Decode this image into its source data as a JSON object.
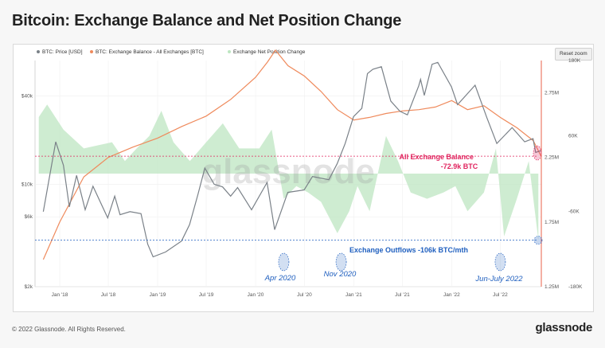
{
  "header": {
    "title": "Bitcoin: Exchange Balance and Net Position Change"
  },
  "footer": {
    "copyright": "© 2022 Glassnode. All Rights Reserved.",
    "brand": "glassnode"
  },
  "toolbar": {
    "reset_zoom_label": "Reset zoom"
  },
  "watermark": "glassnode",
  "colors": {
    "price": "#7a8188",
    "balance": "#ef8a5c",
    "netchange": "#bde6c1",
    "annotation_red": "#e0245e",
    "annotation_blue": "#1f5fbf"
  },
  "chart_data": {
    "type": "line",
    "title": "Bitcoin: Exchange Balance and Net Position Change",
    "x_tick_labels": [
      "Jan '18",
      "Jul '18",
      "Jan '19",
      "Jul '19",
      "Jan '20",
      "Jul '20",
      "Jan '21",
      "Jul '21",
      "Jan '22",
      "Jul '22"
    ],
    "x_range": [
      "2017-10",
      "2022-12"
    ],
    "left_axis": {
      "scale": "log",
      "tick_labels": [
        "$40k",
        "$10k",
        "$6k",
        "$2k"
      ],
      "range": [
        2000,
        70000
      ]
    },
    "right_axis_1": {
      "tick_labels": [
        "2.75M",
        "2.25M",
        "1.75M",
        "1.25M"
      ],
      "range": [
        1250000,
        3000000
      ]
    },
    "right_axis_2": {
      "tick_labels": [
        "180K",
        "60K",
        "-60K",
        "-180K"
      ],
      "range": [
        -180000,
        180000
      ]
    },
    "legend_position": "top-left",
    "grid": true,
    "series": [
      {
        "name": "BTC: Price [USD]",
        "axis": "left",
        "points": [
          [
            "2017-11-01",
            6500
          ],
          [
            "2017-12-17",
            19500
          ],
          [
            "2018-01-15",
            13500
          ],
          [
            "2018-02-06",
            7000
          ],
          [
            "2018-03-05",
            11500
          ],
          [
            "2018-04-06",
            6700
          ],
          [
            "2018-05-05",
            9700
          ],
          [
            "2018-06-29",
            5900
          ],
          [
            "2018-07-25",
            8300
          ],
          [
            "2018-08-14",
            6200
          ],
          [
            "2018-09-20",
            6500
          ],
          [
            "2018-10-31",
            6300
          ],
          [
            "2018-11-25",
            3900
          ],
          [
            "2018-12-15",
            3200
          ],
          [
            "2019-01-31",
            3450
          ],
          [
            "2019-03-31",
            4100
          ],
          [
            "2019-04-30",
            5300
          ],
          [
            "2019-05-31",
            8500
          ],
          [
            "2019-06-26",
            12900
          ],
          [
            "2019-07-31",
            10000
          ],
          [
            "2019-08-31",
            9600
          ],
          [
            "2019-09-30",
            8300
          ],
          [
            "2019-10-26",
            9500
          ],
          [
            "2019-12-17",
            6700
          ],
          [
            "2020-02-13",
            10300
          ],
          [
            "2020-03-12",
            4900
          ],
          [
            "2020-04-30",
            8800
          ],
          [
            "2020-06-30",
            9150
          ],
          [
            "2020-07-31",
            11300
          ],
          [
            "2020-09-30",
            10750
          ],
          [
            "2020-10-31",
            13800
          ],
          [
            "2020-11-30",
            19000
          ],
          [
            "2020-12-31",
            29000
          ],
          [
            "2021-01-31",
            33000
          ],
          [
            "2021-02-21",
            57000
          ],
          [
            "2021-03-13",
            61000
          ],
          [
            "2021-04-14",
            63500
          ],
          [
            "2021-05-19",
            37000
          ],
          [
            "2021-06-22",
            31500
          ],
          [
            "2021-07-20",
            29800
          ],
          [
            "2021-08-31",
            47000
          ],
          [
            "2021-09-07",
            52000
          ],
          [
            "2021-09-21",
            40500
          ],
          [
            "2021-10-20",
            66000
          ],
          [
            "2021-11-10",
            68000
          ],
          [
            "2021-12-31",
            46300
          ],
          [
            "2022-01-23",
            35000
          ],
          [
            "2022-03-29",
            47500
          ],
          [
            "2022-05-12",
            28500
          ],
          [
            "2022-06-18",
            19000
          ],
          [
            "2022-08-14",
            24400
          ],
          [
            "2022-09-30",
            19500
          ],
          [
            "2022-10-31",
            20500
          ],
          [
            "2022-11-10",
            16500
          ],
          [
            "2022-11-30",
            17000
          ]
        ]
      },
      {
        "name": "BTC: Exchange Balance - All Exchanges [BTC]",
        "axis": "right_1",
        "points": [
          [
            "2017-11-01",
            1460000
          ],
          [
            "2018-01-01",
            1750000
          ],
          [
            "2018-04-01",
            2100000
          ],
          [
            "2018-07-01",
            2250000
          ],
          [
            "2018-10-01",
            2330000
          ],
          [
            "2019-01-01",
            2400000
          ],
          [
            "2019-04-01",
            2490000
          ],
          [
            "2019-07-01",
            2570000
          ],
          [
            "2019-10-01",
            2700000
          ],
          [
            "2020-01-01",
            2870000
          ],
          [
            "2020-02-15",
            2990000
          ],
          [
            "2020-03-15",
            3080000
          ],
          [
            "2020-05-01",
            2960000
          ],
          [
            "2020-07-01",
            2880000
          ],
          [
            "2020-09-01",
            2760000
          ],
          [
            "2020-11-01",
            2620000
          ],
          [
            "2021-01-01",
            2540000
          ],
          [
            "2021-03-01",
            2560000
          ],
          [
            "2021-05-01",
            2590000
          ],
          [
            "2021-07-01",
            2610000
          ],
          [
            "2021-09-01",
            2620000
          ],
          [
            "2021-11-01",
            2640000
          ],
          [
            "2022-01-01",
            2690000
          ],
          [
            "2022-03-01",
            2620000
          ],
          [
            "2022-05-01",
            2650000
          ],
          [
            "2022-07-01",
            2560000
          ],
          [
            "2022-09-01",
            2480000
          ],
          [
            "2022-11-01",
            2380000
          ],
          [
            "2022-11-30",
            2260000
          ]
        ]
      },
      {
        "name": "Exchange Net Position Change",
        "axis": "right_2",
        "type": "area",
        "points": [
          [
            "2017-10-15",
            90000
          ],
          [
            "2017-11-15",
            110000
          ],
          [
            "2018-01-15",
            70000
          ],
          [
            "2018-04-01",
            40000
          ],
          [
            "2018-07-15",
            50000
          ],
          [
            "2018-09-01",
            20000
          ],
          [
            "2018-10-15",
            40000
          ],
          [
            "2018-12-01",
            60000
          ],
          [
            "2019-01-15",
            100000
          ],
          [
            "2019-03-01",
            50000
          ],
          [
            "2019-05-01",
            20000
          ],
          [
            "2019-07-01",
            50000
          ],
          [
            "2019-09-01",
            80000
          ],
          [
            "2019-11-01",
            40000
          ],
          [
            "2020-01-15",
            40000
          ],
          [
            "2020-03-01",
            70000
          ],
          [
            "2020-04-15",
            -40000
          ],
          [
            "2020-06-01",
            -20000
          ],
          [
            "2020-07-15",
            -30000
          ],
          [
            "2020-09-01",
            -45000
          ],
          [
            "2020-11-01",
            -95000
          ],
          [
            "2020-12-15",
            -60000
          ],
          [
            "2021-01-15",
            -20000
          ],
          [
            "2021-03-01",
            -60000
          ],
          [
            "2021-05-01",
            60000
          ],
          [
            "2021-06-15",
            20000
          ],
          [
            "2021-08-01",
            -30000
          ],
          [
            "2021-10-01",
            -40000
          ],
          [
            "2021-12-01",
            -30000
          ],
          [
            "2022-01-15",
            -20000
          ],
          [
            "2022-03-01",
            -60000
          ],
          [
            "2022-05-01",
            -30000
          ],
          [
            "2022-06-15",
            40000
          ],
          [
            "2022-07-15",
            -100000
          ],
          [
            "2022-09-01",
            -40000
          ],
          [
            "2022-10-15",
            20000
          ],
          [
            "2022-11-20",
            -106000
          ]
        ]
      }
    ],
    "annotations": [
      {
        "text": "All Exchange Balance",
        "color": "red"
      },
      {
        "text": "-72.9k BTC",
        "color": "red"
      },
      {
        "text": "Exchange Outflows -106k BTC/mth",
        "color": "blue"
      },
      {
        "text": "Apr 2020",
        "color": "blue"
      },
      {
        "text": "Nov 2020",
        "color": "blue"
      },
      {
        "text": "Jun-July 2022",
        "color": "blue"
      }
    ]
  }
}
